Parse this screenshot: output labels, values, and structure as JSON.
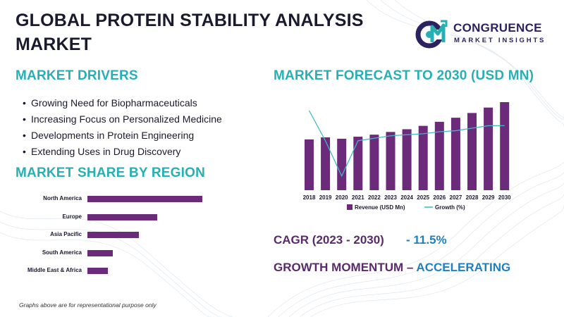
{
  "header": {
    "title_line1": "GLOBAL PROTEIN STABILITY ANALYSIS",
    "title_line2": "MARKET"
  },
  "logo": {
    "mark": "CM",
    "word": "CONGRUENCE",
    "sub": "MARKET INSIGHTS"
  },
  "drivers": {
    "heading": "MARKET DRIVERS",
    "items": [
      "Growing Need for Biopharmaceuticals",
      "Increasing Focus on Personalized Medicine",
      "Developments in Protein Engineering",
      "Extending Uses in Drug Discovery"
    ]
  },
  "share": {
    "heading": "MARKET SHARE BY REGION"
  },
  "forecast": {
    "heading": "MARKET FORECAST TO 2030 (USD MN)"
  },
  "summary": {
    "cagr_label": "CAGR (2023 - 2030)",
    "cagr_value": "- 11.5%",
    "momentum_label": "GROWTH MOMENTUM –",
    "momentum_value": "ACCELERATING"
  },
  "footnote": "Graphs above are for representational purpose only",
  "colors": {
    "accent_teal": "#27b0b3",
    "bar_purple": "#6b2a7a",
    "growth_line": "#3fb8c9",
    "highlight_blue": "#1f7fbf",
    "heading_purple": "#5a2a6a"
  },
  "chart_data": [
    {
      "type": "bar",
      "orientation": "horizontal",
      "categories": [
        "North America",
        "Europe",
        "Asia Pacific",
        "South America",
        "Middle East & Africa"
      ],
      "values": [
        100,
        61,
        45,
        22,
        18
      ],
      "xlabel": "",
      "ylabel": "",
      "grid": false
    },
    {
      "type": "bar",
      "categories": [
        "2018",
        "2019",
        "2020",
        "2021",
        "2022",
        "2023",
        "2024",
        "2025",
        "2026",
        "2027",
        "2028",
        "2029",
        "2030"
      ],
      "series": [
        {
          "name": "Revenue (USD Mn)",
          "type": "bar",
          "values": [
            75,
            78,
            76,
            79,
            82,
            86,
            90,
            95,
            101,
            107,
            114,
            122,
            130
          ]
        },
        {
          "name": "Growth (%)",
          "type": "line",
          "values": [
            10,
            4,
            -3,
            4,
            4.5,
            5,
            5.2,
            5.4,
            5.8,
            6,
            6.5,
            7,
            7
          ]
        }
      ],
      "ylim": [
        0,
        130
      ],
      "xlabel": "",
      "ylabel": "",
      "grid": false,
      "legend": "bottom"
    }
  ]
}
